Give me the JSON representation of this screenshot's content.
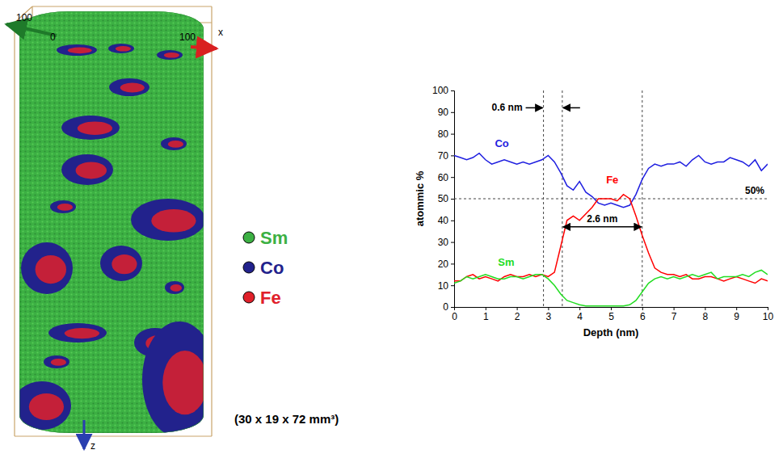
{
  "chart_data": {
    "type": "line",
    "x_label": "Depth (nm)",
    "y_label": "atommic %",
    "xlim": [
      0,
      10
    ],
    "xticks": [
      0,
      1,
      2,
      3,
      4,
      5,
      6,
      7,
      8,
      9,
      10
    ],
    "ylim": [
      0,
      100
    ],
    "yticks": [
      0,
      10,
      20,
      30,
      40,
      50,
      60,
      70,
      80,
      90,
      100
    ],
    "grid": false,
    "x": [
      0,
      0.2,
      0.4,
      0.6,
      0.8,
      1.0,
      1.2,
      1.4,
      1.6,
      1.8,
      2.0,
      2.2,
      2.4,
      2.6,
      2.8,
      3.0,
      3.2,
      3.4,
      3.6,
      3.8,
      4.0,
      4.2,
      4.4,
      4.6,
      4.8,
      5.0,
      5.2,
      5.4,
      5.6,
      5.8,
      6.0,
      6.2,
      6.4,
      6.6,
      6.8,
      7.0,
      7.2,
      7.4,
      7.6,
      7.8,
      8.0,
      8.2,
      8.4,
      8.6,
      8.8,
      9.0,
      9.2,
      9.4,
      9.6,
      9.8,
      10.0
    ],
    "series": [
      {
        "name": "Co",
        "color": "#1f1fe0",
        "values": [
          70,
          69,
          68,
          69,
          71,
          68,
          66,
          67,
          68,
          67,
          66,
          67,
          66,
          67,
          68,
          70,
          67,
          62,
          56,
          54,
          58,
          53,
          51,
          48,
          47,
          48,
          47,
          46,
          47,
          52,
          59,
          64,
          66,
          65,
          66,
          66,
          67,
          65,
          68,
          70,
          67,
          66,
          67,
          67,
          69,
          68,
          67,
          65,
          68,
          63,
          66
        ]
      },
      {
        "name": "Fe",
        "color": "#ff0000",
        "values": [
          12,
          12,
          14,
          15,
          13,
          14,
          13,
          12,
          14,
          15,
          14,
          14,
          15,
          14,
          15,
          14,
          16,
          28,
          40,
          42,
          40,
          43,
          46,
          50,
          50,
          50,
          49,
          52,
          50,
          42,
          33,
          25,
          18,
          16,
          15,
          15,
          14,
          15,
          13,
          13,
          14,
          14,
          13,
          12,
          13,
          14,
          13,
          12,
          11,
          13,
          12
        ]
      },
      {
        "name": "Sm",
        "color": "#22dd22",
        "values": [
          11,
          12,
          14,
          13,
          14,
          15,
          14,
          13,
          13,
          14,
          14,
          13,
          14,
          15,
          15,
          13,
          10,
          6,
          3,
          2,
          1,
          0.5,
          0.5,
          0.5,
          0.5,
          0.5,
          0.5,
          0.5,
          1,
          3,
          7,
          11,
          13,
          14,
          13,
          14,
          13,
          14,
          15,
          14,
          15,
          16,
          13,
          14,
          14,
          14,
          15,
          14,
          16,
          17,
          15
        ]
      }
    ],
    "annotations": [
      {
        "text": "0.6 nm",
        "x": [
          2.85,
          3.45
        ],
        "y": 92
      },
      {
        "text": "2.6 nm",
        "x": [
          3.45,
          6.0
        ],
        "y": 37
      }
    ],
    "reference_lines": [
      {
        "x": 2.85
      },
      {
        "x": 3.45
      },
      {
        "x": 6.0
      },
      {
        "y": 50,
        "label": "50%"
      }
    ]
  },
  "reconstruction": {
    "axis_texts": [
      "100",
      "0",
      "100",
      "x",
      "z"
    ],
    "legend": [
      {
        "name": "Sm",
        "color": "#3cb043"
      },
      {
        "name": "Co",
        "color": "#22228c"
      },
      {
        "name": "Fe",
        "color": "#e0202a"
      }
    ],
    "dimensions": "(30 x 19 x 72 mm³)"
  }
}
